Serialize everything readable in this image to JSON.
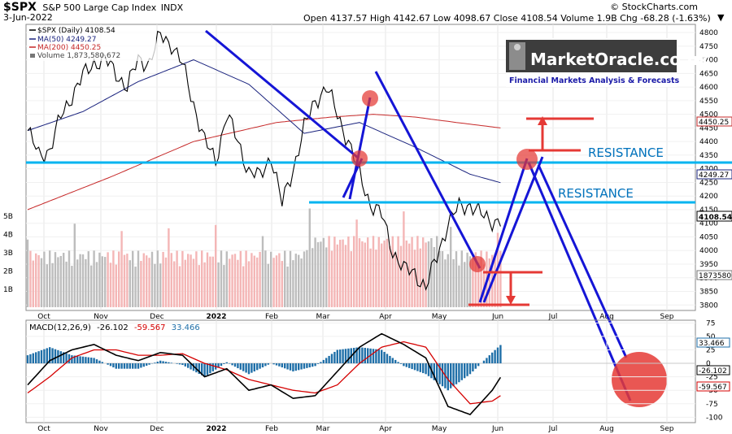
{
  "header": {
    "symbol": "$SPX",
    "name": "S&P 500 Large Cap Index",
    "exchange": "INDX",
    "date": "3-Jun-2022",
    "ohlc": "Open 4137.57  High 4142.67  Low 4098.67  Close 4108.54  Volume 1.9B  Chg -68.28 (-1.63%)",
    "ohlc_mark": "▼",
    "credit": "© StockCharts.com"
  },
  "legend": {
    "price": "$SPX (Daily) 4108.54",
    "ma50": "MA(50) 4249.27",
    "ma200": "MA(200) 4450.25",
    "volume": "Volume 1,873,580,672"
  },
  "logo": {
    "title": "MarketOracle.co.uk",
    "subtitle": "Financial Markets Analysis & Forecasts"
  },
  "annotations": {
    "resistance_upper": "RESISTANCE",
    "resistance_lower": "RESISTANCE"
  },
  "macd": {
    "label": "MACD(12,26,9)",
    "macd_value": "-26.102",
    "signal_value": "-59.567",
    "hist_value": "33.466"
  },
  "colors": {
    "price": "#000000",
    "ma50": "#1a237e",
    "ma200": "#c62828",
    "volume_up": "#bdbdbd",
    "volume_down": "#f4b6b6",
    "trend": "#1515d6",
    "resistance": "#00b4f0",
    "target": "#e53935",
    "hist": "#1f6fa8"
  },
  "chart_data": [
    {
      "type": "line",
      "title": "$SPX S&P 500 Large Cap Index (Daily)",
      "x_months": [
        "Oct",
        "Nov",
        "Dec",
        "2022",
        "Feb",
        "Mar",
        "Apr",
        "May",
        "Jun",
        "Jul",
        "Aug",
        "Sep"
      ],
      "y_ticks": [
        3800,
        3850,
        3900,
        3950,
        4000,
        4050,
        4100,
        4150,
        4200,
        4250,
        4300,
        4350,
        4400,
        4450,
        4500,
        4550,
        4600,
        4650,
        4700,
        4750,
        4800
      ],
      "y_tick_labels": [
        "3800",
        "3850",
        "3900",
        "3950",
        "4000",
        "4050",
        "4100",
        "4150",
        "4200",
        "4250",
        "4300",
        "4350",
        "4400",
        "4450",
        "4500",
        "4550",
        "4600",
        "4650",
        "4700",
        "4750",
        "4800"
      ],
      "ylim": [
        3780,
        4830
      ],
      "series": [
        {
          "name": "$SPX (Daily)",
          "x": [
            0,
            4,
            8,
            12,
            16,
            20,
            24,
            28,
            32,
            36,
            40,
            44,
            48,
            52,
            56,
            60,
            64,
            68,
            72,
            76,
            80,
            84,
            88,
            92,
            96,
            100,
            104,
            108,
            112,
            116,
            120,
            124,
            128,
            132,
            136,
            140,
            144,
            148,
            152,
            156,
            160,
            164,
            168,
            171
          ],
          "values": [
            4440,
            4350,
            4370,
            4490,
            4570,
            4640,
            4690,
            4700,
            4650,
            4600,
            4700,
            4690,
            4790,
            4760,
            4680,
            4540,
            4400,
            4330,
            4500,
            4400,
            4290,
            4270,
            4350,
            4170,
            4300,
            4450,
            4550,
            4600,
            4500,
            4400,
            4280,
            4170,
            4130,
            4000,
            3930,
            3920,
            3860,
            3980,
            4100,
            4160,
            4170,
            4130,
            4110,
            4108
          ]
        },
        {
          "name": "MA(50)",
          "x": [
            0,
            20,
            40,
            60,
            80,
            100,
            120,
            140,
            160,
            171
          ],
          "values": [
            4440,
            4510,
            4620,
            4700,
            4610,
            4430,
            4470,
            4380,
            4280,
            4249
          ]
        },
        {
          "name": "MA(200)",
          "x": [
            0,
            30,
            60,
            90,
            110,
            125,
            140,
            155,
            171
          ],
          "values": [
            4150,
            4270,
            4400,
            4470,
            4490,
            4500,
            4490,
            4470,
            4450
          ]
        }
      ],
      "annotations": [
        "RESISTANCE",
        "RESISTANCE"
      ]
    },
    {
      "type": "bar",
      "title": "Volume",
      "y_ticks": [
        "1B",
        "2B",
        "3B",
        "4B",
        "5B"
      ],
      "series": [
        {
          "name": "Volume",
          "note": "~1.9B last bar"
        }
      ]
    },
    {
      "type": "line",
      "title": "MACD(12,26,9)",
      "y_ticks": [
        -100,
        -75,
        -50,
        -25,
        0,
        25,
        50,
        75
      ],
      "y_tick_labels": [
        "-100",
        "-75",
        "-50",
        "-25",
        "0",
        "25",
        "50",
        "75"
      ],
      "ylim": [
        -110,
        80
      ],
      "series": [
        {
          "name": "MACD",
          "x": [
            0,
            8,
            16,
            24,
            32,
            40,
            48,
            56,
            64,
            72,
            80,
            88,
            96,
            104,
            112,
            120,
            128,
            136,
            144,
            152,
            160,
            168,
            171
          ],
          "values": [
            -40,
            5,
            25,
            35,
            15,
            5,
            20,
            15,
            -25,
            -10,
            -50,
            -40,
            -65,
            -60,
            -15,
            30,
            55,
            35,
            10,
            -80,
            -95,
            -50,
            -26
          ]
        },
        {
          "name": "Signal",
          "x": [
            0,
            8,
            16,
            24,
            32,
            40,
            48,
            56,
            64,
            72,
            80,
            88,
            96,
            104,
            112,
            120,
            128,
            136,
            144,
            152,
            160,
            168,
            171
          ],
          "values": [
            -55,
            -25,
            10,
            25,
            25,
            15,
            15,
            18,
            0,
            -12,
            -30,
            -40,
            -50,
            -55,
            -40,
            0,
            30,
            40,
            30,
            -30,
            -75,
            -70,
            -60
          ]
        },
        {
          "name": "Histogram",
          "note": "last value 33.466"
        }
      ]
    }
  ]
}
